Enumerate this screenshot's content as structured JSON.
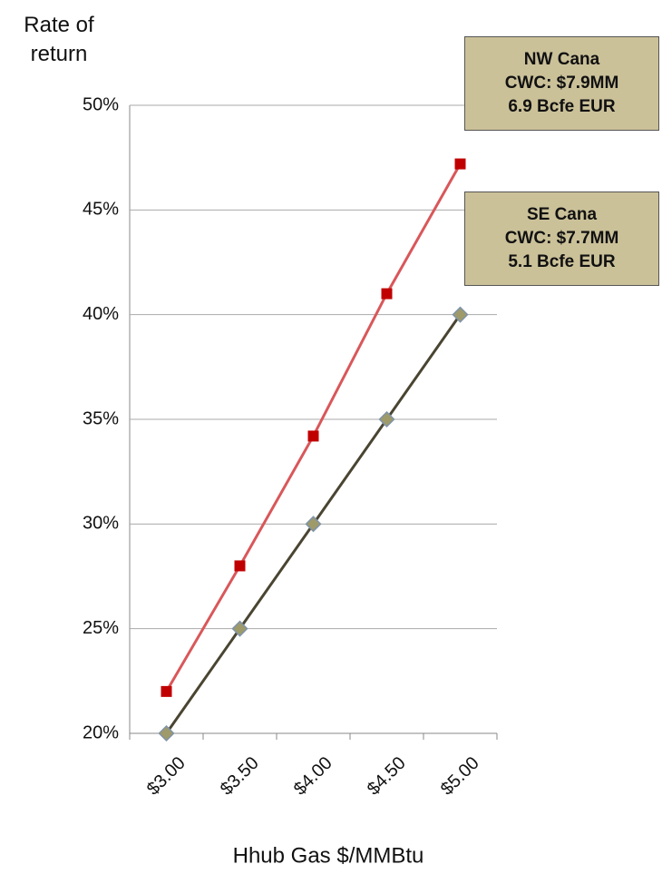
{
  "chart_data": {
    "type": "line",
    "y_axis_label": "Rate of return",
    "x_axis_label": "Hhub Gas $/MMBtu",
    "categories": [
      "$3.00",
      "$3.50",
      "$4.00",
      "$4.50",
      "$5.00"
    ],
    "series": [
      {
        "name": "NW Cana",
        "color": "#d9575a",
        "marker": "square",
        "marker_color": "#c00000",
        "values": [
          22,
          28,
          34.2,
          41,
          47.2
        ]
      },
      {
        "name": "SE Cana",
        "color": "#4a4532",
        "marker": "diamond",
        "marker_color": "#9e9a6a",
        "values": [
          20,
          25,
          30,
          35,
          40
        ]
      }
    ],
    "ylim": [
      20,
      50
    ],
    "yticks": [
      {
        "value": 20,
        "label": "20%"
      },
      {
        "value": 25,
        "label": "25%"
      },
      {
        "value": 30,
        "label": "30%"
      },
      {
        "value": 35,
        "label": "35%"
      },
      {
        "value": 40,
        "label": "40%"
      },
      {
        "value": 45,
        "label": "45%"
      },
      {
        "value": 50,
        "label": "50%"
      }
    ],
    "grid": true,
    "annotations": [
      {
        "lines": [
          "NW Cana",
          "CWC: $7.9MM",
          "6.9 Bcfe EUR"
        ]
      },
      {
        "lines": [
          "SE Cana",
          "CWC: $7.7MM",
          "5.1 Bcfe EUR"
        ]
      }
    ]
  }
}
